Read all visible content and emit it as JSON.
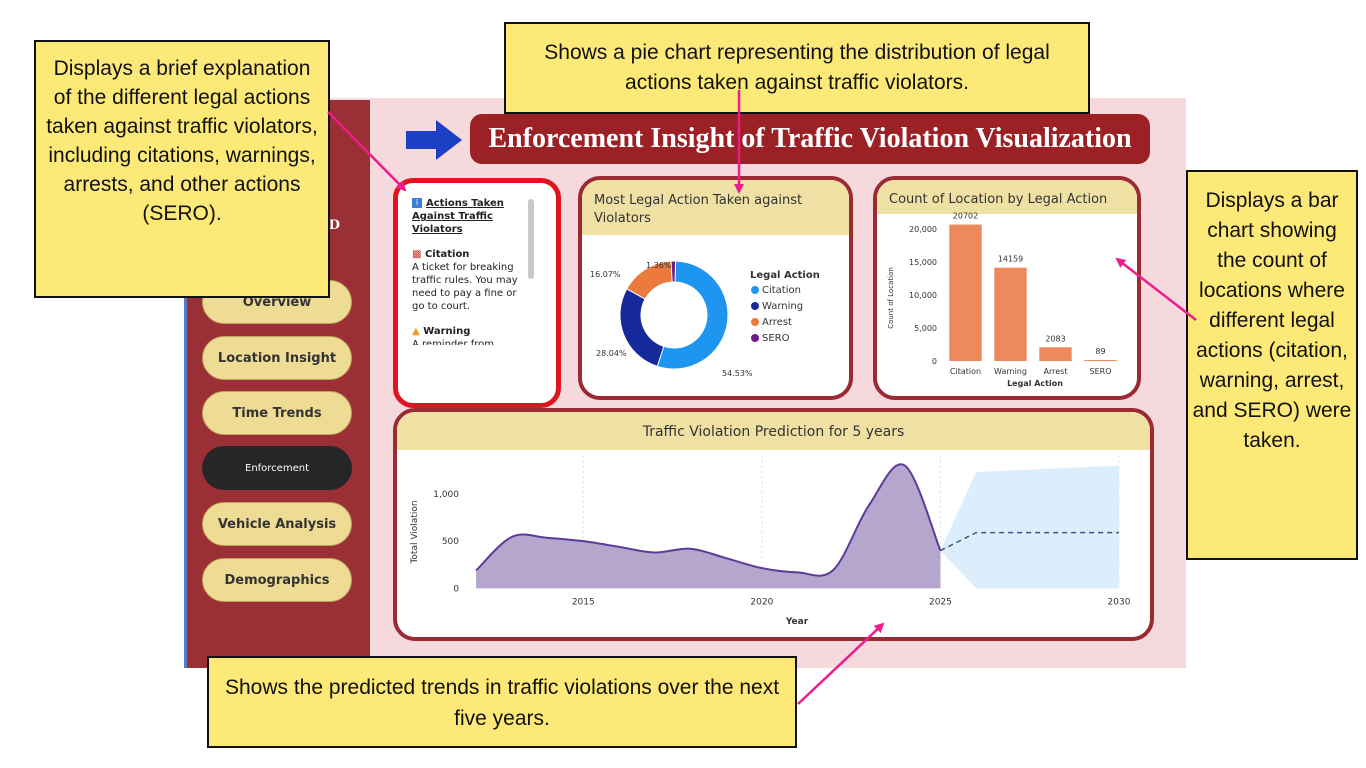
{
  "title": "Enforcement Insight of Traffic Violation Visualization",
  "sidebar": {
    "partial_label": "RD",
    "items": [
      {
        "label": "Overview"
      },
      {
        "label": "Location Insight"
      },
      {
        "label": "Time Trends"
      },
      {
        "label": "Enforcement",
        "active": true
      },
      {
        "label": "Vehicle Analysis"
      },
      {
        "label": "Demographics"
      }
    ]
  },
  "info": {
    "heading_line1": "Actions Taken",
    "heading_line2": "Against Traffic",
    "heading_line3": "Violators",
    "citation_title": "Citation",
    "citation_text": "A ticket for breaking traffic rules. You may need to pay a fine or go to court.",
    "warning_title": "Warning",
    "warning_text_partial": "A reminder from"
  },
  "callouts": {
    "left": "Displays a brief explanation of the different legal actions taken against traffic violators, including citations, warnings, arrests, and other actions (SERO).",
    "top": "Shows a pie chart representing the distribution of legal actions taken against traffic violators.",
    "right": "Displays a bar chart showing the count of locations where different legal actions (citation, warning, arrest, and SERO) were taken.",
    "bottom": "Shows the predicted trends in traffic violations over the next five years."
  },
  "colors": {
    "citation": "#1e96f0",
    "warning": "#172a9c",
    "arrest": "#ec7a3c",
    "sero": "#6e1e8c"
  },
  "chart_data": [
    {
      "type": "pie",
      "title": "Most Legal Action Taken against Violators",
      "legend_title": "Legal Action",
      "legend_position": "right",
      "categories": [
        "Citation",
        "Warning",
        "Arrest",
        "SERO"
      ],
      "values": [
        54.53,
        28.04,
        16.07,
        1.36
      ],
      "value_labels": [
        "54.53%",
        "28.04%",
        "16.07%",
        "1.36%"
      ]
    },
    {
      "type": "bar",
      "title": "Count of Location by Legal Action",
      "xlabel": "Legal Action",
      "ylabel": "Count of Location",
      "categories": [
        "Citation",
        "Warning",
        "Arrest",
        "SERO"
      ],
      "values": [
        20702,
        14159,
        2083,
        89
      ],
      "yticks": [
        "0",
        "5,000",
        "10,000",
        "15,000",
        "20,000"
      ],
      "ylim": [
        0,
        22000
      ],
      "color": "#ec8a5e"
    },
    {
      "type": "area",
      "title": "Traffic Violation Prediction for 5 years",
      "xlabel": "Year",
      "ylabel": "Total Violation",
      "x": [
        2012,
        2013,
        2014,
        2015,
        2016,
        2017,
        2018,
        2019,
        2020,
        2021,
        2022,
        2023,
        2024,
        2025
      ],
      "values": [
        190,
        545,
        535,
        500,
        440,
        380,
        420,
        320,
        215,
        170,
        195,
        880,
        1300,
        400
      ],
      "forecast_x": [
        2025,
        2026,
        2030
      ],
      "forecast_values": [
        400,
        590,
        590
      ],
      "forecast_upper": [
        400,
        1230,
        1300
      ],
      "forecast_lower": [
        400,
        0,
        0
      ],
      "xticks": [
        "2015",
        "2020",
        "2025",
        "2030"
      ],
      "yticks": [
        "0",
        "500",
        "1,000"
      ],
      "xlim": [
        2011.8,
        2030
      ],
      "ylim": [
        -80,
        1400
      ]
    }
  ]
}
